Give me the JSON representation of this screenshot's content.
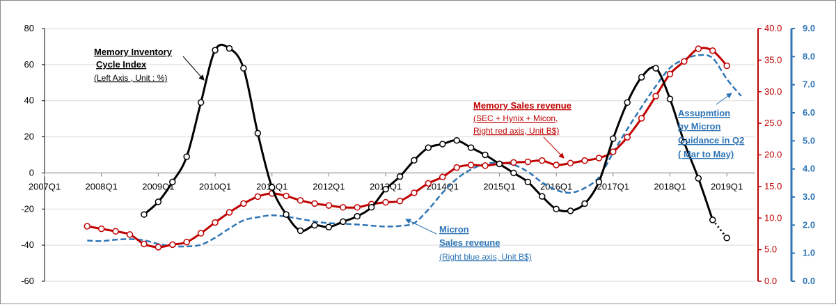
{
  "chart_data": {
    "type": "line",
    "title": "",
    "x_ticks": [
      "2007Q1",
      "2008Q1",
      "2009Q1",
      "2010Q1",
      "2011Q1",
      "2012Q1",
      "2013Q1",
      "2014Q1",
      "2015Q1",
      "2016Q1",
      "2017Q1",
      "2018Q1",
      "2019Q1"
    ],
    "left_axis": {
      "ylim": [
        -60,
        80
      ],
      "ticks": [
        "80",
        "60",
        "40",
        "20",
        "0",
        "-20",
        "-40",
        "-60"
      ],
      "color": "#000000"
    },
    "right_red_axis": {
      "ylim": [
        0,
        40
      ],
      "ticks": [
        "40.0",
        "35.0",
        "30.0",
        "25.0",
        "20.0",
        "15.0",
        "10.0",
        "5.0",
        "0.0"
      ],
      "color": "#c00000"
    },
    "right_blue_axis": {
      "ylim": [
        0,
        9
      ],
      "ticks": [
        "9.0",
        "8.0",
        "7.0",
        "6.0",
        "5.0",
        "4.0",
        "3.0",
        "2.0",
        "1.0",
        "0.0"
      ],
      "color": "#2e75b6"
    },
    "series": [
      {
        "name": "Memory Inventory Cycle Index",
        "axis": "left",
        "color": "#000000",
        "x": [
          2008.75,
          2009.0,
          2009.25,
          2009.5,
          2009.75,
          2010.0,
          2010.25,
          2010.5,
          2010.75,
          2011.0,
          2011.25,
          2011.5,
          2011.75,
          2012.0,
          2012.25,
          2012.5,
          2012.75,
          2013.0,
          2013.25,
          2013.5,
          2013.75,
          2014.0,
          2014.25,
          2014.5,
          2014.75,
          2015.0,
          2015.25,
          2015.5,
          2015.75,
          2016.0,
          2016.25,
          2016.5,
          2016.75,
          2017.0,
          2017.25,
          2017.5,
          2017.75,
          2018.0,
          2018.25,
          2018.5,
          2018.75,
          2019.0
        ],
        "values": [
          -23,
          -16,
          -5,
          9,
          39,
          68,
          69,
          58,
          22,
          -8,
          -23,
          -32,
          -29,
          -30,
          -27,
          -24,
          -19,
          -9,
          -2,
          7,
          14,
          16,
          18,
          14,
          10,
          5,
          0,
          -5,
          -13,
          -20,
          -21,
          -17,
          -5,
          19,
          39,
          53,
          58,
          41,
          17,
          -3,
          -26,
          -36
        ],
        "last_point_dotted": true
      },
      {
        "name": "Memory Sales revenue",
        "axis": "right_red",
        "color": "#c00000",
        "x": [
          2007.75,
          2008.0,
          2008.25,
          2008.5,
          2008.75,
          2009.0,
          2009.25,
          2009.5,
          2009.75,
          2010.0,
          2010.25,
          2010.5,
          2010.75,
          2011.0,
          2011.25,
          2011.5,
          2011.75,
          2012.0,
          2012.25,
          2012.5,
          2012.75,
          2013.0,
          2013.25,
          2013.5,
          2013.75,
          2014.0,
          2014.25,
          2014.5,
          2014.75,
          2015.0,
          2015.25,
          2015.5,
          2015.75,
          2016.0,
          2016.25,
          2016.5,
          2016.75,
          2017.0,
          2017.25,
          2017.5,
          2017.75,
          2018.0,
          2018.25,
          2018.5,
          2018.75,
          2019.0
        ],
        "values": [
          8.7,
          8.3,
          7.9,
          7.4,
          5.9,
          5.4,
          5.8,
          6.2,
          7.6,
          9.3,
          10.9,
          12.3,
          13.4,
          13.9,
          13.5,
          12.8,
          12.3,
          12.0,
          11.7,
          11.7,
          12.2,
          12.5,
          12.7,
          14.0,
          15.5,
          16.5,
          18.0,
          18.4,
          18.3,
          18.6,
          18.8,
          18.9,
          19.1,
          18.4,
          18.7,
          19.1,
          19.5,
          20.5,
          22.8,
          25.8,
          29.3,
          32.8,
          34.8,
          36.8,
          36.5,
          34.1
        ]
      },
      {
        "name": "Micron Sales reveune",
        "axis": "right_blue",
        "color": "#2e75b6",
        "dashed": true,
        "x": [
          2007.75,
          2008.0,
          2008.25,
          2008.5,
          2008.75,
          2009.0,
          2009.25,
          2009.5,
          2009.75,
          2010.0,
          2010.25,
          2010.5,
          2010.75,
          2011.0,
          2011.25,
          2011.5,
          2011.75,
          2012.0,
          2012.25,
          2012.5,
          2012.75,
          2013.0,
          2013.25,
          2013.5,
          2013.75,
          2014.0,
          2014.25,
          2014.5,
          2014.75,
          2015.0,
          2015.25,
          2015.5,
          2015.75,
          2016.0,
          2016.25,
          2016.5,
          2016.75,
          2017.0,
          2017.25,
          2017.5,
          2017.75,
          2018.0,
          2018.25,
          2018.5,
          2018.75,
          2019.0,
          2019.25
        ],
        "values": [
          1.45,
          1.43,
          1.48,
          1.5,
          1.46,
          1.33,
          1.25,
          1.24,
          1.3,
          1.55,
          1.88,
          2.17,
          2.28,
          2.35,
          2.3,
          2.22,
          2.13,
          2.07,
          2.05,
          2.02,
          1.98,
          1.95,
          1.97,
          2.07,
          2.55,
          3.15,
          3.65,
          3.98,
          4.18,
          4.22,
          4.15,
          3.9,
          3.52,
          3.25,
          3.15,
          3.32,
          3.7,
          4.58,
          5.42,
          6.2,
          6.95,
          7.6,
          7.9,
          8.05,
          7.95,
          7.2,
          6.6
        ]
      }
    ],
    "annotations": {
      "inventory": {
        "title_line1": "Memory Inventory",
        "title_line2": "Cycle Index",
        "note": "(Left Axis , Unit : %)"
      },
      "memory_sales": {
        "title": "Memory Sales revenue",
        "line1": "(SEC + Hynix + Micon,",
        "line2": "Right red axis, Unit B$)"
      },
      "micron_sales": {
        "title_line1": "Micron",
        "title_line2": "Sales reveune",
        "note": "(Right  blue axis, Unit B$)"
      },
      "assumption": {
        "line1": "Assupmtion",
        "line2": "by Micron",
        "line3": "Guidance in Q2",
        "line4": "( Mar to May)"
      }
    }
  }
}
